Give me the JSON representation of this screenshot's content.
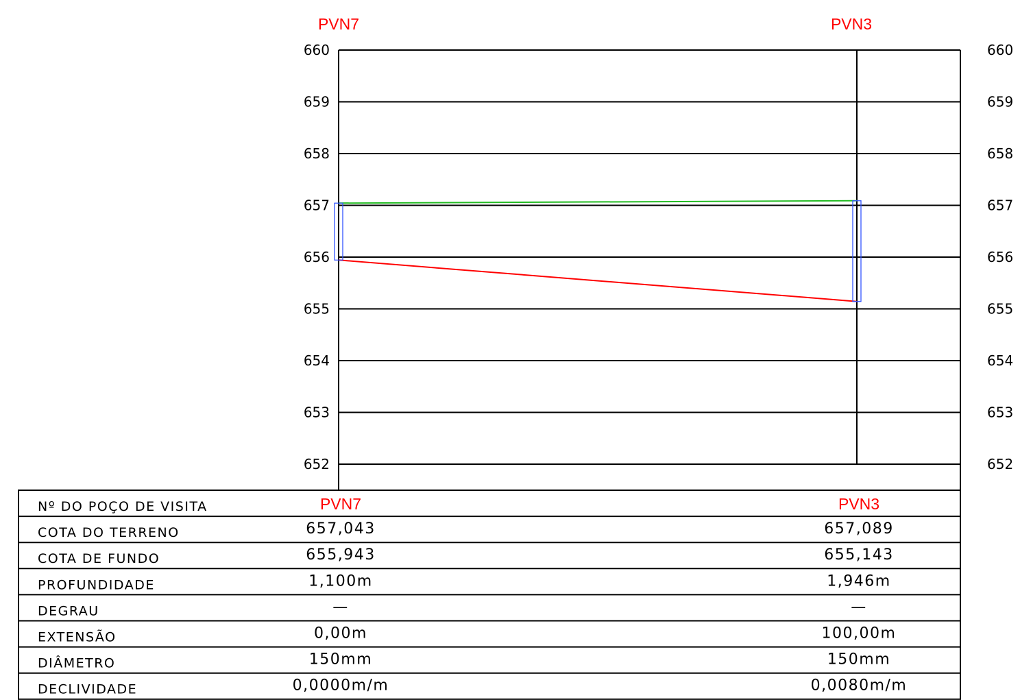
{
  "profile": {
    "stations": [
      "PVN7",
      "PVN3"
    ],
    "y_axis": {
      "min": 652,
      "max": 660,
      "ticks": [
        "660",
        "659",
        "658",
        "657",
        "656",
        "655",
        "654",
        "653",
        "652"
      ]
    },
    "terrain_color": "#22bb22",
    "pipe_color": "#ff0000",
    "manhole_color": "#3355ff",
    "grid_color": "#000000"
  },
  "chart_data": {
    "type": "line",
    "x": [
      0,
      100
    ],
    "ylim": [
      652,
      660
    ],
    "series": [
      {
        "values": [
          657.043,
          657.089
        ]
      },
      {
        "values": [
          655.943,
          655.143
        ]
      }
    ]
  },
  "table": {
    "rows": [
      {
        "label": "Nº DO POÇO DE VISITA",
        "values": [
          "PVN7",
          "PVN3"
        ],
        "red": true
      },
      {
        "label": "COTA DO TERRENO",
        "values": [
          "657,043",
          "657,089"
        ]
      },
      {
        "label": "COTA DE FUNDO",
        "values": [
          "655,943",
          "655,143"
        ]
      },
      {
        "label": "PROFUNDIDADE",
        "values": [
          "1,100m",
          "1,946m"
        ]
      },
      {
        "label": "DEGRAU",
        "values": [
          "—",
          "—"
        ]
      },
      {
        "label": "EXTENSÃO",
        "values": [
          "0,00m",
          "100,00m"
        ]
      },
      {
        "label": "DIÂMETRO",
        "values": [
          "150mm",
          "150mm"
        ]
      },
      {
        "label": "DECLIVIDADE",
        "values": [
          "0,0000m/m",
          "0,0080m/m"
        ]
      }
    ]
  }
}
